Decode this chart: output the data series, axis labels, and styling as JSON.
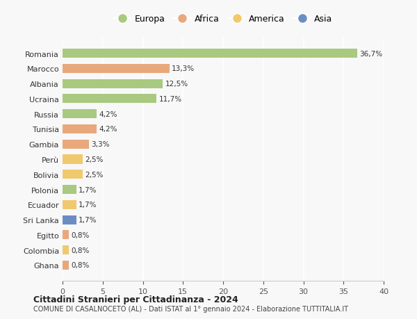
{
  "countries": [
    "Romania",
    "Marocco",
    "Albania",
    "Ucraina",
    "Russia",
    "Tunisia",
    "Gambia",
    "Perù",
    "Bolivia",
    "Polonia",
    "Ecuador",
    "Sri Lanka",
    "Egitto",
    "Colombia",
    "Ghana"
  ],
  "values": [
    36.7,
    13.3,
    12.5,
    11.7,
    4.2,
    4.2,
    3.3,
    2.5,
    2.5,
    1.7,
    1.7,
    1.7,
    0.8,
    0.8,
    0.8
  ],
  "labels": [
    "36,7%",
    "13,3%",
    "12,5%",
    "11,7%",
    "4,2%",
    "4,2%",
    "3,3%",
    "2,5%",
    "2,5%",
    "1,7%",
    "1,7%",
    "1,7%",
    "0,8%",
    "0,8%",
    "0,8%"
  ],
  "continents": [
    "Europa",
    "Africa",
    "Europa",
    "Europa",
    "Europa",
    "Africa",
    "Africa",
    "America",
    "America",
    "Europa",
    "America",
    "Asia",
    "Africa",
    "America",
    "Africa"
  ],
  "colors": {
    "Europa": "#a8c97f",
    "Africa": "#e8a87c",
    "America": "#f0c96e",
    "Asia": "#6b8dc4"
  },
  "legend_order": [
    "Europa",
    "Africa",
    "America",
    "Asia"
  ],
  "title1": "Cittadini Stranieri per Cittadinanza - 2024",
  "title2": "COMUNE DI CASALNOCETO (AL) - Dati ISTAT al 1° gennaio 2024 - Elaborazione TUTTITALIA.IT",
  "xlim": [
    0,
    40
  ],
  "xticks": [
    0,
    5,
    10,
    15,
    20,
    25,
    30,
    35,
    40
  ],
  "background_color": "#f8f8f8",
  "grid_color": "#ffffff"
}
